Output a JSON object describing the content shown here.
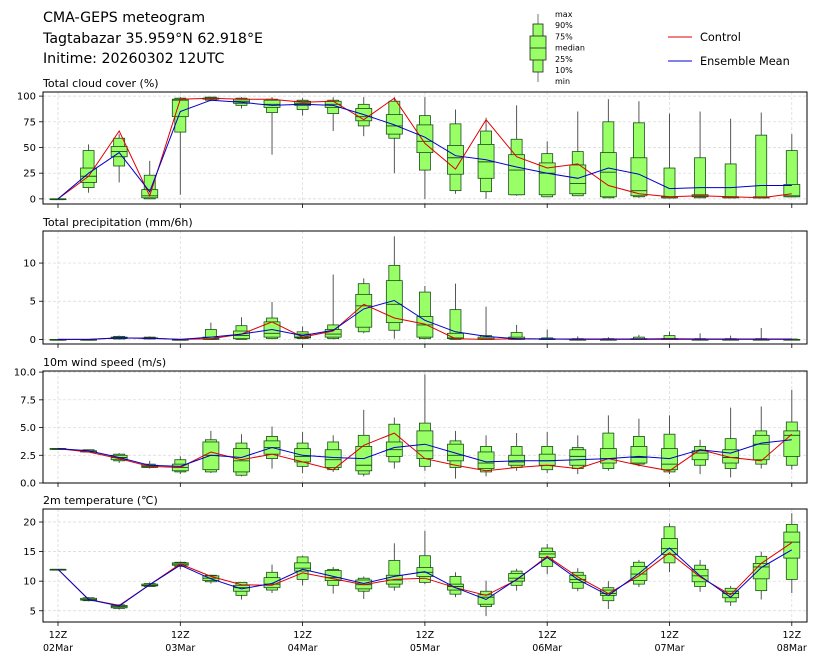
{
  "header": {
    "title": "CMA-GEPS meteogram",
    "location": "Tagtabazar 35.959°N 62.918°E",
    "initime": "Initime: 20260302 12UTC"
  },
  "legend": {
    "box_labels": [
      "max",
      "90%",
      "75%",
      "median",
      "25%",
      "10%",
      "min"
    ],
    "lines": [
      {
        "name": "Control",
        "color": "#e00000"
      },
      {
        "name": "Ensemble Mean",
        "color": "#0000cc"
      }
    ],
    "box_color": "#99ff66"
  },
  "chart_data": [
    {
      "type": "boxplot-line",
      "title": "Total cloud cover (%)",
      "ylim": [
        -5,
        104
      ],
      "yticks": [
        0,
        25,
        50,
        75,
        100
      ],
      "ytick_labels": [
        "0",
        "25",
        "50",
        "75",
        "100"
      ],
      "grid": true,
      "x_step_hours": 6,
      "xtick_labels": [
        [
          "12Z",
          "02Mar"
        ],
        [
          "12Z",
          "03Mar"
        ],
        [
          "12Z",
          "04Mar"
        ],
        [
          "12Z",
          "05Mar"
        ],
        [
          "12Z",
          "06Mar"
        ],
        [
          "12Z",
          "07Mar"
        ],
        [
          "12Z",
          "08Mar"
        ]
      ],
      "stats": {
        "min": [
          0,
          6,
          16,
          0,
          4,
          95,
          88,
          43,
          81,
          66,
          61,
          25,
          0,
          5,
          0,
          3,
          2,
          3,
          1,
          1,
          1,
          1,
          1,
          1,
          2
        ],
        "p10": [
          0,
          11,
          32,
          0,
          65,
          96,
          91,
          84,
          87,
          83,
          71,
          59,
          28,
          8,
          7,
          4,
          2,
          3,
          1,
          2,
          1,
          1,
          1,
          1,
          2
        ],
        "p25": [
          0,
          16,
          41,
          1,
          80,
          97,
          93,
          89,
          91,
          89,
          76,
          63,
          45,
          24,
          20,
          4,
          4,
          5,
          2,
          3,
          1,
          2,
          1,
          1,
          2
        ],
        "median": [
          0,
          22,
          46,
          3,
          96,
          98,
          95,
          92,
          93,
          92,
          80,
          71,
          56,
          40,
          36,
          28,
          25,
          15,
          26,
          8,
          1,
          3,
          2,
          1,
          3
        ],
        "p75": [
          0,
          30,
          51,
          9,
          97,
          98,
          97,
          96,
          95,
          95,
          88,
          82,
          72,
          52,
          53,
          43,
          35,
          33,
          45,
          40,
          2,
          4,
          2,
          2,
          14
        ],
        "p90": [
          0,
          47,
          59,
          23,
          98,
          99,
          98,
          97,
          96,
          96,
          92,
          95,
          81,
          73,
          66,
          58,
          44,
          46,
          75,
          74,
          30,
          40,
          34,
          62,
          47
        ],
        "max": [
          0,
          53,
          63,
          37,
          99,
          99,
          99,
          99,
          98,
          99,
          99,
          99,
          99,
          87,
          79,
          91,
          56,
          85,
          97,
          95,
          83,
          85,
          78,
          84,
          63
        ]
      },
      "series": [
        {
          "name": "Control",
          "values": [
            0,
            22,
            66,
            3,
            97,
            98,
            97,
            97,
            94,
            95,
            77,
            98,
            54,
            29,
            77,
            41,
            30,
            34,
            13,
            5,
            2,
            3,
            2,
            1,
            5
          ]
        },
        {
          "name": "Ensemble Mean",
          "values": [
            0,
            25,
            45,
            7,
            85,
            96,
            94,
            91,
            92,
            91,
            82,
            72,
            60,
            42,
            38,
            31,
            25,
            20,
            30,
            24,
            10,
            11,
            11,
            13,
            13
          ]
        }
      ]
    },
    {
      "type": "boxplot-line",
      "title": "Total precipitation (mm/6h)",
      "ylim": [
        -0.6,
        14.2
      ],
      "yticks": [
        0,
        5,
        10
      ],
      "ytick_labels": [
        "0",
        "5",
        "10"
      ],
      "grid": true,
      "x_step_hours": 6,
      "stats": {
        "min": [
          0,
          0,
          0,
          0,
          0,
          0,
          0,
          0,
          0,
          0,
          0.8,
          0.1,
          0,
          0,
          0,
          0,
          0,
          0,
          0,
          0,
          0,
          0,
          0,
          0,
          0
        ],
        "p10": [
          0,
          0,
          0.05,
          0.05,
          0,
          0,
          0,
          0.1,
          0.1,
          0.1,
          1.0,
          1.2,
          0.1,
          0,
          0,
          0,
          0,
          0,
          0,
          0,
          0,
          0,
          0,
          0,
          0
        ],
        "p25": [
          0,
          0,
          0.1,
          0.1,
          0,
          0,
          0.1,
          0.3,
          0.2,
          0.3,
          1.6,
          2.2,
          0.3,
          0.1,
          0,
          0,
          0,
          0,
          0,
          0,
          0,
          0,
          0,
          0,
          0
        ],
        "median": [
          0,
          0,
          0.2,
          0.15,
          0,
          0.1,
          0.5,
          0.8,
          0.3,
          0.7,
          4.4,
          4.6,
          1.9,
          0.2,
          0.1,
          0.1,
          0,
          0,
          0,
          0,
          0,
          0,
          0,
          0,
          0
        ],
        "p75": [
          0,
          0,
          0.3,
          0.2,
          0,
          0.3,
          1.1,
          2.3,
          0.7,
          1.3,
          5.9,
          7.7,
          3.0,
          0.8,
          0.3,
          0.3,
          0.1,
          0,
          0,
          0.1,
          0.1,
          0,
          0,
          0,
          0
        ],
        "p90": [
          0,
          0,
          0.4,
          0.3,
          0,
          1.3,
          1.8,
          2.8,
          1.0,
          1.9,
          7.3,
          9.7,
          6.2,
          3.9,
          0.5,
          0.9,
          0.2,
          0.1,
          0.1,
          0.3,
          0.5,
          0.1,
          0.1,
          0.1,
          0.05
        ],
        "max": [
          0,
          0,
          0.5,
          0.4,
          0,
          2.2,
          2.9,
          4.9,
          1.7,
          8.5,
          8.0,
          13.5,
          7.0,
          7.3,
          4.3,
          1.9,
          1.3,
          0.4,
          0.3,
          0.6,
          1.0,
          0.8,
          0.5,
          1.5,
          0.1
        ]
      },
      "series": [
        {
          "name": "Control",
          "values": [
            0,
            0,
            0.2,
            0.15,
            0,
            0.1,
            0.7,
            2.3,
            0.3,
            1.1,
            4.6,
            2.8,
            2.0,
            0.1,
            0,
            0.1,
            0.05,
            0,
            0,
            0,
            0,
            0,
            0,
            0,
            0
          ]
        },
        {
          "name": "Ensemble Mean",
          "values": [
            0,
            0,
            0.2,
            0.15,
            0,
            0.3,
            0.7,
            1.3,
            0.5,
            1.2,
            4.0,
            5.1,
            2.5,
            1.0,
            0.4,
            0.1,
            0.05,
            0.05,
            0.05,
            0.05,
            0.1,
            0.05,
            0.05,
            0.05,
            0.05
          ]
        }
      ]
    },
    {
      "type": "boxplot-line",
      "title": "10m wind speed (m/s)",
      "ylim": [
        0,
        10.1
      ],
      "yticks": [
        0,
        2.5,
        5,
        7.5,
        10
      ],
      "ytick_labels": [
        "0.0",
        "2.5",
        "5.0",
        "7.5",
        "10.0"
      ],
      "grid": true,
      "x_step_hours": 6,
      "stats": {
        "min": [
          3.1,
          2.8,
          1.8,
          1.3,
          0.8,
          0.9,
          0.6,
          1.3,
          0.9,
          1.0,
          0.6,
          1.3,
          1.1,
          0.4,
          0.6,
          1.1,
          0.9,
          0.8,
          1.1,
          1.5,
          0.8,
          0.8,
          0.5,
          1.3,
          1.2
        ],
        "p10": [
          3.1,
          2.8,
          2.0,
          1.4,
          1.0,
          1.0,
          0.7,
          2.2,
          1.5,
          1.2,
          0.8,
          1.9,
          1.5,
          1.4,
          1.0,
          1.4,
          1.2,
          1.3,
          1.3,
          1.7,
          1.0,
          1.6,
          1.3,
          1.7,
          1.6
        ],
        "p25": [
          3.1,
          2.8,
          2.1,
          1.4,
          1.1,
          1.2,
          1.0,
          2.6,
          1.9,
          1.4,
          1.1,
          2.4,
          2.2,
          2.0,
          1.3,
          1.6,
          1.6,
          1.6,
          1.8,
          1.8,
          1.2,
          2.1,
          1.8,
          2.1,
          2.4
        ],
        "median": [
          3.1,
          2.9,
          2.3,
          1.5,
          1.4,
          2.5,
          2.0,
          3.2,
          2.4,
          2.1,
          1.6,
          3.0,
          2.9,
          2.5,
          1.8,
          1.9,
          2.0,
          2.4,
          2.2,
          2.3,
          1.7,
          2.7,
          2.3,
          3.5,
          4.3
        ],
        "p75": [
          3.1,
          2.9,
          2.5,
          1.6,
          1.7,
          3.7,
          3.1,
          3.8,
          3.1,
          3.0,
          3.3,
          3.7,
          4.7,
          3.5,
          2.8,
          2.5,
          2.6,
          3.0,
          3.1,
          3.3,
          3.1,
          2.9,
          3.0,
          4.3,
          4.7
        ],
        "p90": [
          3.1,
          3.0,
          2.6,
          1.7,
          2.1,
          3.9,
          3.6,
          4.2,
          3.6,
          3.7,
          4.3,
          5.3,
          5.4,
          3.8,
          3.3,
          3.3,
          3.3,
          3.2,
          4.5,
          4.2,
          4.4,
          3.3,
          4.0,
          4.7,
          5.5
        ],
        "max": [
          3.1,
          3.0,
          2.7,
          2.0,
          2.4,
          4.7,
          4.4,
          5.1,
          4.6,
          4.3,
          6.6,
          5.9,
          9.8,
          4.7,
          4.3,
          4.5,
          4.6,
          4.3,
          6.1,
          5.8,
          6.1,
          3.9,
          6.8,
          6.9,
          8.4
        ]
      },
      "series": [
        {
          "name": "Control",
          "values": [
            3.1,
            2.8,
            2.2,
            1.5,
            1.4,
            2.8,
            2.1,
            2.6,
            1.9,
            1.2,
            3.4,
            4.5,
            2.2,
            1.6,
            1.1,
            1.4,
            1.6,
            1.3,
            2.2,
            1.6,
            1.1,
            3.0,
            2.3,
            2.0,
            4.4
          ]
        },
        {
          "name": "Ensemble Mean",
          "values": [
            3.1,
            2.9,
            2.3,
            1.6,
            1.5,
            2.5,
            2.3,
            3.2,
            2.5,
            2.3,
            2.2,
            3.2,
            3.5,
            2.7,
            1.9,
            2.0,
            2.0,
            2.1,
            2.2,
            2.4,
            2.2,
            3.0,
            2.7,
            3.6,
            3.9
          ]
        }
      ]
    },
    {
      "type": "boxplot-line",
      "title": "2m temperature (℃)",
      "ylim": [
        3.1,
        22.2
      ],
      "yticks": [
        5,
        10,
        15,
        20
      ],
      "ytick_labels": [
        "5",
        "10",
        "15",
        "20"
      ],
      "grid": true,
      "x_step_hours": 6,
      "stats": {
        "min": [
          12.0,
          6.6,
          5.2,
          9.0,
          12.0,
          9.6,
          6.9,
          8.0,
          9.3,
          7.9,
          7.0,
          8.4,
          9.5,
          7.3,
          4.1,
          8.4,
          11.2,
          8.3,
          5.3,
          9.0,
          11.5,
          8.2,
          5.8,
          6.9,
          8.0
        ],
        "p10": [
          12.0,
          6.7,
          5.4,
          9.1,
          12.5,
          9.9,
          7.6,
          8.5,
          10.3,
          9.3,
          8.3,
          9.0,
          9.8,
          7.8,
          5.7,
          9.3,
          12.5,
          8.8,
          6.7,
          9.5,
          13.1,
          9.1,
          6.5,
          8.4,
          10.3
        ],
        "p25": [
          12.0,
          6.8,
          5.5,
          9.2,
          12.7,
          10.1,
          8.3,
          8.9,
          11.7,
          10.1,
          8.7,
          9.5,
          10.8,
          8.5,
          6.1,
          10.0,
          14.0,
          9.8,
          7.6,
          10.1,
          14.5,
          9.9,
          7.2,
          10.4,
          13.9
        ],
        "median": [
          12.0,
          6.9,
          5.7,
          9.3,
          12.9,
          10.5,
          8.9,
          9.5,
          12.2,
          10.6,
          9.4,
          10.2,
          11.5,
          9.1,
          7.3,
          10.5,
          14.6,
          10.3,
          7.9,
          11.2,
          15.5,
          10.9,
          7.9,
          12.4,
          16.6
        ],
        "p75": [
          12.0,
          7.1,
          5.9,
          9.5,
          13.1,
          10.9,
          9.3,
          10.6,
          13.1,
          11.8,
          10.2,
          11.0,
          12.3,
          9.5,
          7.7,
          11.3,
          15.0,
          11.0,
          8.5,
          12.5,
          17.2,
          12.0,
          8.3,
          13.0,
          18.3
        ],
        "p90": [
          12.0,
          7.2,
          6.0,
          9.6,
          13.2,
          11.0,
          9.8,
          11.5,
          14.1,
          12.0,
          10.5,
          13.5,
          14.3,
          10.8,
          8.3,
          11.7,
          15.6,
          11.5,
          8.9,
          13.2,
          19.2,
          12.7,
          8.8,
          14.2,
          19.6
        ],
        "max": [
          12.0,
          7.3,
          6.1,
          9.8,
          13.3,
          11.1,
          9.8,
          12.8,
          14.3,
          12.4,
          10.8,
          16.4,
          18.5,
          11.5,
          10.1,
          12.1,
          16.3,
          12.2,
          10.0,
          13.6,
          19.8,
          13.6,
          9.2,
          15.0,
          21.5
        ]
      },
      "series": [
        {
          "name": "Control",
          "values": [
            12.0,
            6.9,
            5.9,
            9.4,
            12.9,
            10.8,
            9.4,
            9.3,
            11.4,
            10.4,
            9.4,
            10.3,
            10.5,
            8.9,
            7.6,
            10.2,
            14.2,
            10.7,
            7.9,
            10.9,
            14.8,
            10.7,
            7.7,
            13.0,
            16.5
          ]
        },
        {
          "name": "Ensemble Mean",
          "values": [
            12.0,
            6.9,
            5.8,
            9.4,
            12.7,
            10.4,
            8.7,
            9.6,
            12.0,
            10.8,
            9.6,
            10.8,
            11.6,
            8.9,
            6.9,
            10.3,
            14.0,
            10.3,
            7.6,
            11.3,
            15.6,
            10.9,
            7.3,
            12.3,
            15.3
          ]
        }
      ]
    }
  ]
}
